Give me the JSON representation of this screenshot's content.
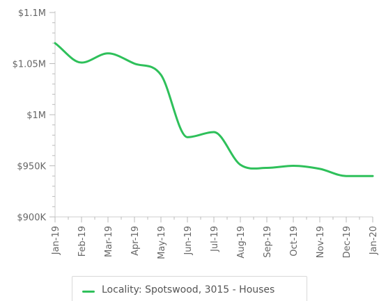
{
  "chart_data": {
    "type": "line",
    "x": [
      "Jan-19",
      "Feb-19",
      "Mar-19",
      "Apr-19",
      "May-19",
      "Jun-19",
      "Jul-19",
      "Aug-19",
      "Sep-19",
      "Oct-19",
      "Nov-19",
      "Dec-19",
      "Jan-20"
    ],
    "y_tick_labels": [
      "$900K",
      "$950K",
      "$1M",
      "$1.05M",
      "$1.1M"
    ],
    "y_ticks": [
      900000,
      950000,
      1000000,
      1050000,
      1100000
    ],
    "ylim": [
      900000,
      1100000
    ],
    "series": [
      {
        "name": "Locality: Spotswood, 3015 - Houses",
        "color": "#2ec05a",
        "values": [
          1070000,
          1051000,
          1060000,
          1050000,
          1039000,
          978000,
          983000,
          951000,
          948000,
          950000,
          947000,
          940000,
          940000
        ]
      }
    ],
    "grid": false,
    "legend": "bottom"
  }
}
